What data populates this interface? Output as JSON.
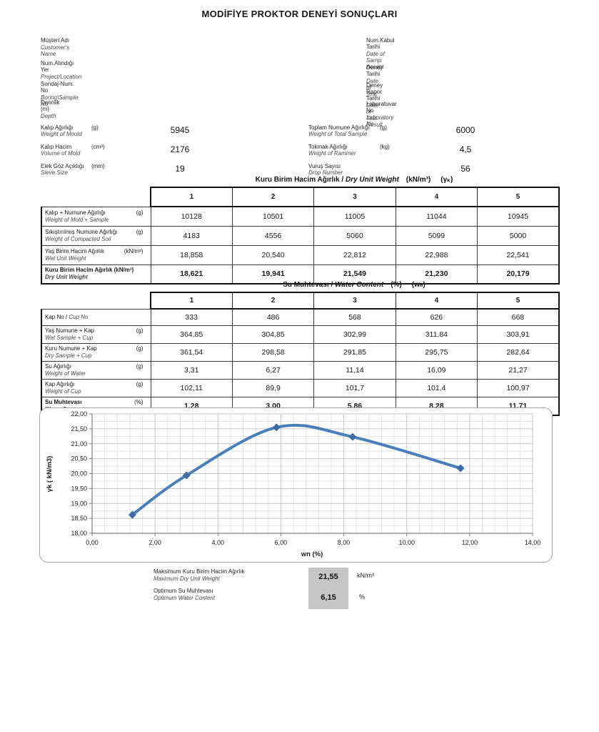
{
  "title": "MODİFİYE PROKTOR DENEYİ SONUÇLARI",
  "header": {
    "left": [
      {
        "tr": "Müşteri Adı",
        "en": "Customer's Name"
      },
      {
        "tr": "Num.Alındığı Yer",
        "en": "Project/Location"
      },
      {
        "tr": "Sondaj-Num. No",
        "en": "Boring\\Sample No"
      },
      {
        "tr": "Derinlik  (m)",
        "en": "Depth"
      }
    ],
    "right": [
      {
        "tr": "Num.Kabul Tarihi",
        "en": "Date of Samp. Accept"
      },
      {
        "tr": "Deney Tarihi",
        "en": "Date of Test"
      },
      {
        "tr": "Deney Rapor Tarihi",
        "en": "Date of Test Result"
      },
      {
        "tr": "Laboratuvar  No",
        "en": "Laboratory  No"
      }
    ]
  },
  "parameters": {
    "left": [
      {
        "tr": "Kalıp Ağırlığı",
        "unit": "(g)",
        "en": "Weight of Mould",
        "value": "5945"
      },
      {
        "tr": "Kalıp Hacim",
        "unit": "(cm³)",
        "en": "Volume of Mold",
        "value": "2176"
      },
      {
        "tr": "Elek Göz Açıklığı",
        "unit": "(mm)",
        "en": "Sieve Size",
        "value": "19"
      }
    ],
    "right": [
      {
        "tr": "Toplam Numune Ağırlığı",
        "unit": "(g)",
        "en": "Weight of Total Sample",
        "value": "6000"
      },
      {
        "tr": "Tokmak Ağırlığı",
        "unit": "(kg)",
        "en": "Weight of Rammer",
        "value": "4,5"
      },
      {
        "tr": "Vuruş Sayısı",
        "unit": "",
        "en": "Drop Number",
        "value": "56"
      }
    ]
  },
  "table1": {
    "title_tr": "Kuru Birim Hacim Ağırlık",
    "title_sep": " / ",
    "title_en": "Dry Unit Weight",
    "title_unit": "(kN/m³)",
    "title_sym": "(γₖ)",
    "columns": [
      "1",
      "2",
      "3",
      "4",
      "5"
    ],
    "rows": [
      {
        "tr": "Kalıp + Numune Ağırlığı",
        "unit": "(g)",
        "en": "Weight of Mold + Sample",
        "bold": false,
        "values": [
          "10128",
          "10501",
          "11005",
          "11044",
          "10945"
        ]
      },
      {
        "tr": "Sıkıştırılmış Numune Ağırlığı",
        "unit": "(g)",
        "en": "Weight of Compacted Soil",
        "bold": false,
        "values": [
          "4183",
          "4556",
          "5060",
          "5099",
          "5000"
        ]
      },
      {
        "tr": "Yaş Birim Hacim Ağırlık",
        "unit": "(kN/m³)",
        "en": "Wet Unit Weight",
        "bold": false,
        "values": [
          "18,858",
          "20,540",
          "22,812",
          "22,988",
          "22,541"
        ]
      },
      {
        "tr": "Kuru Birim Hacim Ağırlık  (kN/m³)",
        "unit": "",
        "en": "Dry Unit Weight",
        "bold": true,
        "values": [
          "18,621",
          "19,941",
          "21,549",
          "21,230",
          "20,179"
        ]
      }
    ]
  },
  "table2": {
    "title_tr": "Su Muhtevası",
    "title_sep": " / ",
    "title_en": "Water Content",
    "title_unit": "(%)",
    "title_sym": "(wₙ)",
    "columns": [
      "1",
      "2",
      "3",
      "4",
      "5"
    ],
    "rows": [
      {
        "tr": "Kap No /",
        "en": "Cup No",
        "inline": true,
        "unit": "",
        "bold": false,
        "values": [
          "333",
          "486",
          "568",
          "626",
          "668"
        ]
      },
      {
        "tr": "Yaş Numune + Kap",
        "unit": "(g)",
        "en": "Wet Sample + Cup",
        "bold": false,
        "values": [
          "364,85",
          "304,85",
          "302,99",
          "311,84",
          "303,91"
        ]
      },
      {
        "tr": "Kuru Numune + Kap",
        "unit": "(g)",
        "en": "Dry Sample + Cup",
        "bold": false,
        "values": [
          "361,54",
          "298,58",
          "291,85",
          "295,75",
          "282,64"
        ]
      },
      {
        "tr": "Su Ağırlığı",
        "unit": "(g)",
        "en": "Weight of Water",
        "bold": false,
        "values": [
          "3,31",
          "6,27",
          "11,14",
          "16,09",
          "21,27"
        ]
      },
      {
        "tr": "Kap Ağırlığı",
        "unit": "(g)",
        "en": "Weight of Cup",
        "bold": false,
        "values": [
          "102,11",
          "89,9",
          "101,7",
          "101,4",
          "100,97"
        ]
      },
      {
        "tr": "Su Muhtevası",
        "unit": "(%)",
        "en": "Water Content",
        "bold": true,
        "values": [
          "1,28",
          "3,00",
          "5,86",
          "8,28",
          "11,71"
        ]
      }
    ]
  },
  "chart_data": {
    "type": "line",
    "series": [
      {
        "name": "compaction-curve",
        "x": [
          1.28,
          3.0,
          5.86,
          8.28,
          11.71
        ],
        "y": [
          18.621,
          19.941,
          21.549,
          21.23,
          20.179
        ]
      }
    ],
    "xlabel": "wn   (%)",
    "ylabel": "γk    ( kN/m3)",
    "xlim": [
      0,
      14
    ],
    "ylim": [
      18,
      22
    ],
    "x_major": 2,
    "x_minor": 0.4,
    "y_major": 0.5,
    "y_minor": 0.25,
    "x_tick_labels": [
      "0,00",
      "2,00",
      "4,00",
      "6,00",
      "8,00",
      "10,00",
      "12,00",
      "14,00"
    ],
    "y_tick_labels": [
      "18,00",
      "18,50",
      "19,00",
      "19,50",
      "20,00",
      "20,50",
      "21,00",
      "21,50",
      "22,00"
    ],
    "smooth": true,
    "grid": true,
    "legend": "none",
    "line_color": "#4a7ebb",
    "marker_color": "#3c6ba5",
    "marker": "diamond"
  },
  "summary": {
    "rows": [
      {
        "tr": "Maksimum Kuru Birim Hacim Ağırlık",
        "en": "Maximum Dry Unit Weight",
        "value": "21,55",
        "unit": "kN/m³"
      },
      {
        "tr": "Optimum Su Muhtevası",
        "en": "Optimum Water Content",
        "value": "6,15",
        "unit": "%"
      }
    ]
  }
}
